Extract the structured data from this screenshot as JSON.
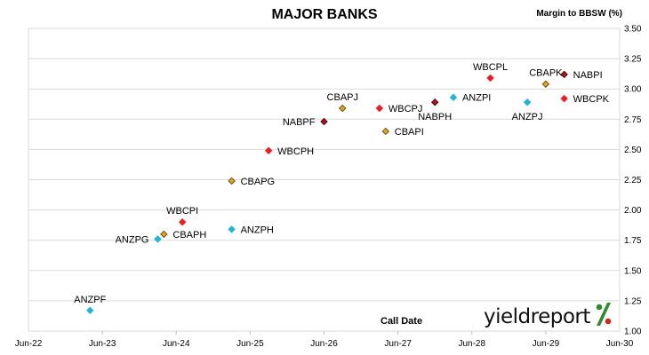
{
  "chart_data": {
    "type": "scatter",
    "title": "MAJOR BANKS",
    "xlabel": "Call Date",
    "ylabel": "Margin to BBSW (%)",
    "xlim": [
      "2022-06",
      "2030-06"
    ],
    "ylim": [
      1.0,
      3.5
    ],
    "x_ticks": [
      "Jun-22",
      "Jun-23",
      "Jun-24",
      "Jun-25",
      "Jun-26",
      "Jun-27",
      "Jun-28",
      "Jun-29",
      "Jun-30"
    ],
    "y_ticks": [
      "1.00",
      "1.25",
      "1.50",
      "1.75",
      "2.00",
      "2.25",
      "2.50",
      "2.75",
      "3.00",
      "3.25",
      "3.50"
    ],
    "grid": true,
    "points": [
      {
        "label": "ANZPF",
        "x": "2023-04",
        "y": 1.17,
        "issuer": "ANZ",
        "label_pos": "above"
      },
      {
        "label": "ANZPG",
        "x": "2024-03",
        "y": 1.76,
        "issuer": "ANZ",
        "label_pos": "left"
      },
      {
        "label": "CBAPH",
        "x": "2024-04",
        "y": 1.8,
        "issuer": "CBA",
        "label_pos": "right"
      },
      {
        "label": "WBCPI",
        "x": "2024-07",
        "y": 1.9,
        "issuer": "WBC",
        "label_pos": "above"
      },
      {
        "label": "ANZPH",
        "x": "2025-03",
        "y": 1.84,
        "issuer": "ANZ",
        "label_pos": "right"
      },
      {
        "label": "CBAPG",
        "x": "2025-03",
        "y": 2.24,
        "issuer": "CBA",
        "label_pos": "right"
      },
      {
        "label": "WBCPH",
        "x": "2025-09",
        "y": 2.49,
        "issuer": "WBC",
        "label_pos": "right"
      },
      {
        "label": "NABPF",
        "x": "2026-06",
        "y": 2.73,
        "issuer": "NAB",
        "label_pos": "left"
      },
      {
        "label": "CBAPJ",
        "x": "2026-09",
        "y": 2.84,
        "issuer": "CBA",
        "label_pos": "above"
      },
      {
        "label": "WBCPJ",
        "x": "2027-03",
        "y": 2.84,
        "issuer": "WBC",
        "label_pos": "right"
      },
      {
        "label": "CBAPI",
        "x": "2027-04",
        "y": 2.65,
        "issuer": "CBA",
        "label_pos": "right"
      },
      {
        "label": "NABPH",
        "x": "2027-12",
        "y": 2.89,
        "issuer": "NAB",
        "label_pos": "below"
      },
      {
        "label": "ANZPI",
        "x": "2028-03",
        "y": 2.93,
        "issuer": "ANZ",
        "label_pos": "right"
      },
      {
        "label": "WBCPL",
        "x": "2028-09",
        "y": 3.09,
        "issuer": "WBC",
        "label_pos": "above"
      },
      {
        "label": "ANZPJ",
        "x": "2029-03",
        "y": 2.89,
        "issuer": "ANZ",
        "label_pos": "below"
      },
      {
        "label": "CBAPK",
        "x": "2029-06",
        "y": 3.04,
        "issuer": "CBA",
        "label_pos": "above"
      },
      {
        "label": "NABPI",
        "x": "2029-09",
        "y": 3.12,
        "issuer": "NAB",
        "label_pos": "right"
      },
      {
        "label": "WBCPK",
        "x": "2029-09",
        "y": 2.92,
        "issuer": "WBC",
        "label_pos": "right"
      }
    ],
    "issuer_colors": {
      "ANZ": {
        "fill": "#1fb6d6",
        "stroke": "#1fb6d6"
      },
      "CBA": {
        "fill": "#e0a81c",
        "stroke": "#5a4a10"
      },
      "WBC": {
        "fill": "#ee1c25",
        "stroke": "#ee1c25"
      },
      "NAB": {
        "fill": "#b0141b",
        "stroke": "#3a0a0a"
      }
    }
  },
  "branding": {
    "logo_text": "yieldreport",
    "logo_symbol": "%"
  }
}
